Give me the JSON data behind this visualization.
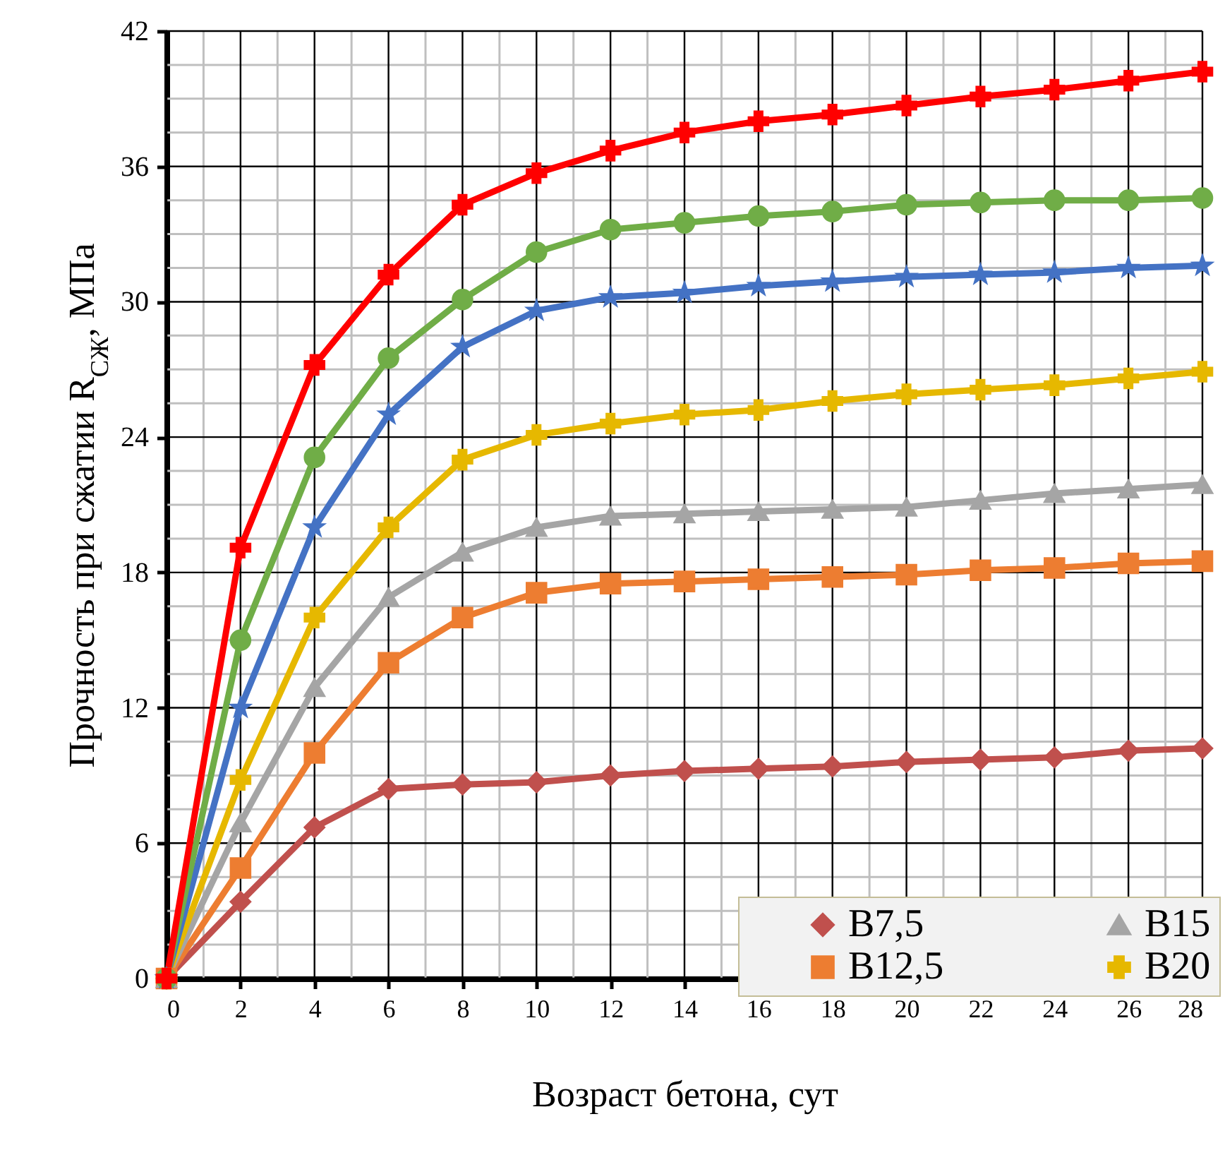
{
  "chart_data": {
    "type": "line",
    "xlabel": "Возраст бетона, сут",
    "ylabel": "Прочность при сжатии R$_{СЖ}$,  МПа",
    "x": [
      0,
      2,
      4,
      6,
      8,
      10,
      12,
      14,
      16,
      18,
      20,
      22,
      24,
      26,
      28
    ],
    "xlim": [
      0,
      28
    ],
    "xticks": [
      0,
      {
        "value": 1,
        "label": null
      },
      2,
      {
        "value": 3,
        "label": null
      },
      4,
      {
        "value": 5,
        "label": null
      },
      6,
      {
        "value": 7,
        "label": null
      },
      8,
      {
        "value": 9,
        "label": null
      },
      10,
      {
        "value": 11,
        "label": null
      },
      12,
      {
        "value": 13,
        "label": null
      },
      14,
      {
        "value": 15,
        "label": null
      },
      16,
      {
        "value": 17,
        "label": null
      },
      18,
      {
        "value": 19,
        "label": null
      },
      20,
      {
        "value": 21,
        "label": null
      },
      22,
      {
        "value": 23,
        "label": null
      },
      24,
      {
        "value": 25,
        "label": null
      },
      26,
      {
        "value": 27,
        "label": null
      },
      28
    ],
    "ylim": [
      0,
      42
    ],
    "yticks": [
      0,
      {
        "value": 1.5,
        "label": null
      },
      {
        "value": 3,
        "label": null
      },
      {
        "value": 4.5,
        "label": null
      },
      6,
      {
        "value": 7.5,
        "label": null
      },
      {
        "value": 9,
        "label": null
      },
      {
        "value": 10.5,
        "label": null
      },
      12,
      {
        "value": 13.5,
        "label": null
      },
      {
        "value": 15,
        "label": null
      },
      {
        "value": 16.5,
        "label": null
      },
      18,
      {
        "value": 19.5,
        "label": null
      },
      {
        "value": 21,
        "label": null
      },
      {
        "value": 22.5,
        "label": null
      },
      24,
      {
        "value": 25.5,
        "label": null
      },
      {
        "value": 27,
        "label": null
      },
      {
        "value": 28.5,
        "label": null
      },
      30,
      {
        "value": 31.5,
        "label": null
      },
      {
        "value": 33,
        "label": null
      },
      {
        "value": 34.5,
        "label": null
      },
      36,
      {
        "value": 37.5,
        "label": null
      },
      {
        "value": 39,
        "label": null
      },
      {
        "value": 40.5,
        "label": null
      },
      42
    ],
    "grid": true,
    "legend": "bottom right",
    "line_style": "solid",
    "series": [
      {
        "name": "B7,5",
        "color": "#c0504d",
        "marker": "diamond",
        "values": [
          0,
          3.4,
          6.7,
          8.4,
          8.6,
          8.7,
          9.0,
          9.2,
          9.3,
          9.4,
          9.6,
          9.7,
          9.8,
          10.1,
          10.2
        ]
      },
      {
        "name": "B12,5",
        "color": "#ed7d31",
        "marker": "square",
        "values": [
          0,
          4.9,
          10.0,
          14.0,
          16.0,
          17.1,
          17.5,
          17.6,
          17.7,
          17.8,
          17.9,
          18.1,
          18.2,
          18.4,
          18.5
        ]
      },
      {
        "name": "B15",
        "color": "#a5a5a5",
        "marker": "triangle",
        "values": [
          0,
          6.9,
          12.9,
          16.9,
          18.9,
          20.0,
          20.5,
          20.6,
          20.7,
          20.8,
          20.9,
          21.2,
          21.5,
          21.7,
          21.9
        ]
      },
      {
        "name": "B20",
        "color": "#e6b800",
        "marker": "cross",
        "values": [
          0,
          8.8,
          16.0,
          20.0,
          23.0,
          24.1,
          24.6,
          25.0,
          25.2,
          25.6,
          25.9,
          26.1,
          26.3,
          26.6,
          26.9
        ]
      },
      {
        "color": "#4472c4",
        "marker": "star",
        "values": [
          0,
          12.0,
          20.0,
          25.0,
          28.0,
          29.6,
          30.2,
          30.4,
          30.7,
          30.9,
          31.1,
          31.2,
          31.3,
          31.5,
          31.6
        ]
      },
      {
        "color": "#70ad47",
        "marker": "circle",
        "values": [
          0,
          15.0,
          23.1,
          27.5,
          30.1,
          32.2,
          33.2,
          33.5,
          33.8,
          34.0,
          34.3,
          34.4,
          34.5,
          34.5,
          34.6
        ]
      },
      {
        "color": "#ff0000",
        "marker": "cross",
        "values": [
          0,
          19.1,
          27.2,
          31.2,
          34.3,
          35.7,
          36.7,
          37.5,
          38.0,
          38.3,
          38.7,
          39.1,
          39.4,
          39.8,
          40.2
        ]
      }
    ]
  }
}
